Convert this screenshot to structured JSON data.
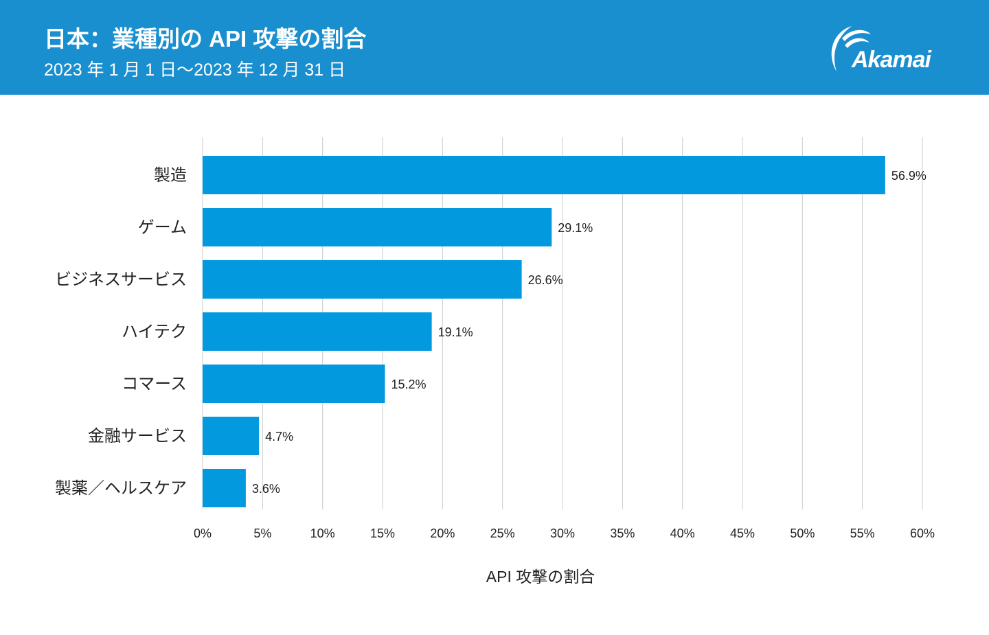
{
  "header": {
    "title": "日本：業種別の API 攻撃の割合",
    "subtitle": "2023 年 1 月 1 日～2023 年 12 月 31 日",
    "logo": "Akamai"
  },
  "colors": {
    "header": "#1a8fcf",
    "bar": "#0399df",
    "grid": "#cccccc"
  },
  "chart_data": {
    "type": "bar",
    "orientation": "horizontal",
    "categories": [
      "製造",
      "ゲーム",
      "ビジネスサービス",
      "ハイテク",
      "コマース",
      "金融サービス",
      "製薬／ヘルスケア"
    ],
    "values": [
      56.9,
      29.1,
      26.6,
      19.1,
      15.2,
      4.7,
      3.6
    ],
    "data_labels": [
      "56.9%",
      "29.1%",
      "26.6%",
      "19.1%",
      "15.2%",
      "4.7%",
      "3.6%"
    ],
    "xlabel": "API 攻撃の割合",
    "ylabel": "",
    "xlim": [
      0,
      60
    ],
    "xticks": [
      0,
      5,
      10,
      15,
      20,
      25,
      30,
      35,
      40,
      45,
      50,
      55,
      60
    ],
    "xtick_labels": [
      "0%",
      "5%",
      "10%",
      "15%",
      "20%",
      "25%",
      "30%",
      "35%",
      "40%",
      "45%",
      "50%",
      "55%",
      "60%"
    ],
    "grid": "vertical"
  }
}
